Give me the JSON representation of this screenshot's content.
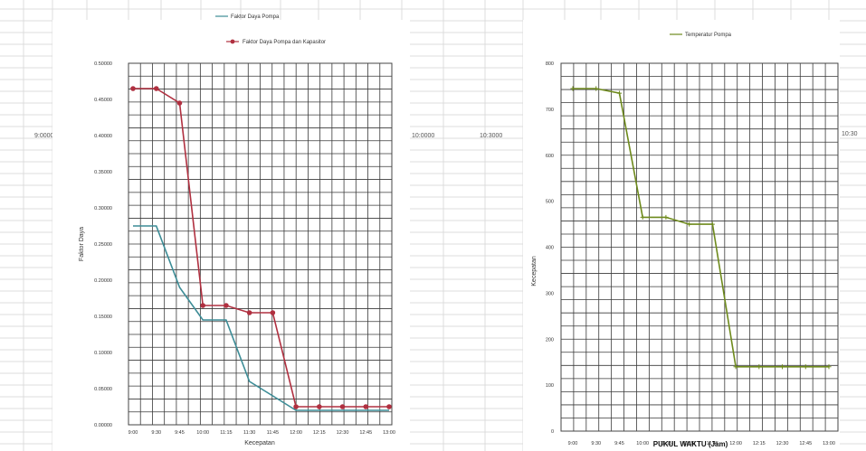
{
  "sheet": {
    "cells": [
      "9:0000",
      "10:0000",
      "10:3000",
      "10:30"
    ]
  },
  "chart_data": [
    {
      "type": "line",
      "title": "",
      "xlabel": "Kecepatan",
      "ylabel": "Faktor Daya",
      "categories": [
        "9:00",
        "9:30",
        "9:45",
        "10:00",
        "11:15",
        "11:30",
        "11:45",
        "12:00",
        "12:15",
        "12:30",
        "12:45",
        "13:00"
      ],
      "yticks": [
        "0.00000",
        "0.05000",
        "0.10000",
        "0.15000",
        "0.20000",
        "0.25000",
        "0.30000",
        "0.35000",
        "0.40000",
        "0.45000",
        "0.50000"
      ],
      "ylim": [
        0,
        0.5
      ],
      "grid": true,
      "legend_position": "top",
      "series": [
        {
          "name": "Faktor Daya Pompa",
          "color": "#3c8c96",
          "marker": "none",
          "values": [
            0.275,
            0.275,
            0.19,
            0.145,
            0.145,
            0.06,
            0.04,
            0.02,
            0.02,
            0.02,
            0.02,
            0.02
          ]
        },
        {
          "name": "Faktor Daya Pompa dan Kapasitor",
          "color": "#b03040",
          "marker": "circle",
          "values": [
            0.465,
            0.465,
            0.445,
            0.165,
            0.165,
            0.155,
            0.155,
            0.025,
            0.025,
            0.025,
            0.025,
            0.025
          ]
        }
      ]
    },
    {
      "type": "line",
      "title": "",
      "xlabel": "PUKUL WAKTU (Jam)",
      "ylabel": "Kecepatan",
      "categories": [
        "9:00",
        "9:30",
        "9:45",
        "10:00",
        "11:15",
        "11:30",
        "11:45",
        "12:00",
        "12:15",
        "12:30",
        "12:45",
        "13:00"
      ],
      "yticks": [
        "0",
        "100",
        "200",
        "300",
        "400",
        "500",
        "600",
        "700",
        "800"
      ],
      "ylim": [
        0,
        800
      ],
      "grid": true,
      "legend_position": "top",
      "series": [
        {
          "name": "Temperatur Pompa",
          "color": "#6e8a1c",
          "marker": "plus",
          "values": [
            745,
            745,
            735,
            465,
            465,
            450,
            450,
            140,
            140,
            140,
            140,
            140
          ]
        }
      ]
    }
  ]
}
